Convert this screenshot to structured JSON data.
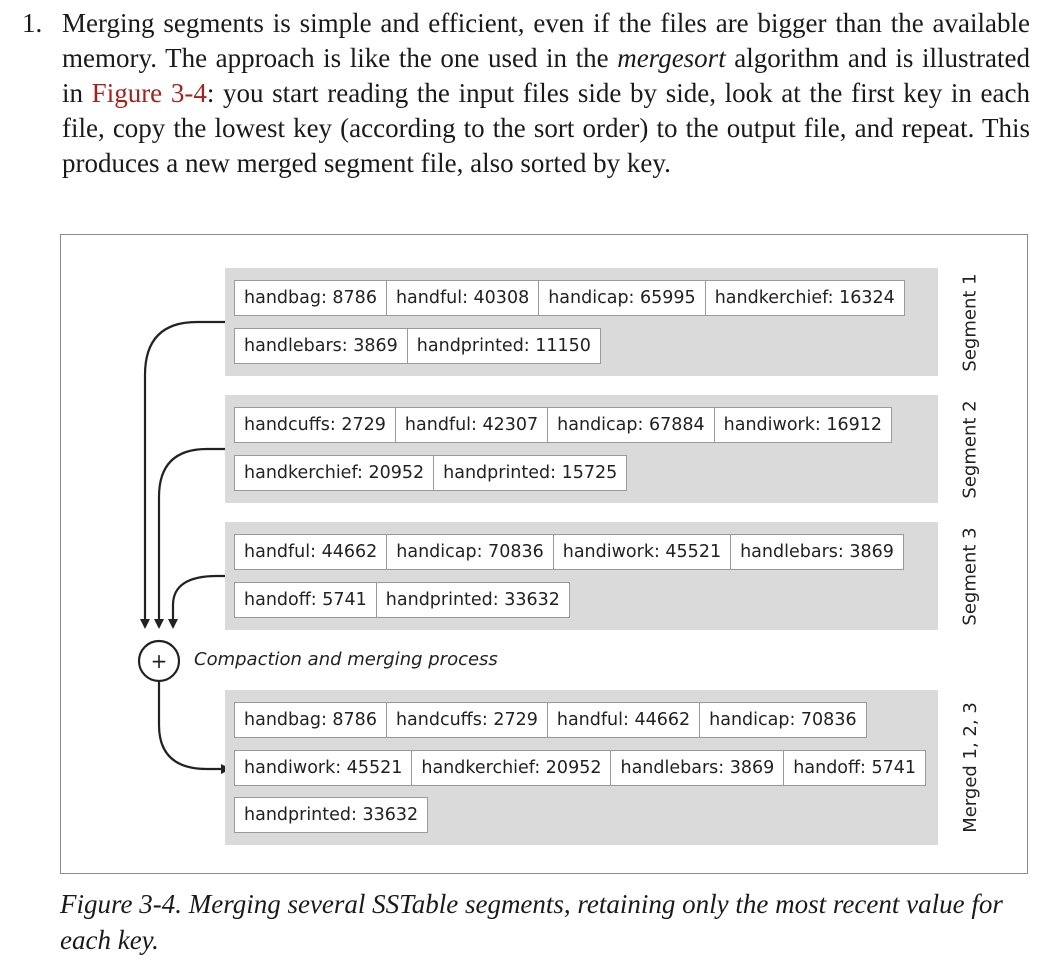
{
  "paragraph": {
    "number": "1.",
    "part1": "Merging segments is simple and efficient, even if the files are bigger than the available memory. The approach is like the one used in the ",
    "emphasis": "mergesort",
    "part2": " algorithm and is illustrated in ",
    "link": "Figure 3-4",
    "part3": ": you start reading the input files side by side, look at the first key in each file, copy the lowest key (according to the sort order) to the output file, and repeat. This produces a new merged segment file, also sorted by key."
  },
  "figure": {
    "segments": [
      {
        "label": "Segment 1",
        "rows": [
          [
            "handbag: 8786",
            "handful: 40308",
            "handicap: 65995",
            "handkerchief: 16324"
          ],
          [
            "handlebars: 3869",
            "handprinted: 11150"
          ]
        ]
      },
      {
        "label": "Segment 2",
        "rows": [
          [
            "handcuffs: 2729",
            "handful: 42307",
            "handicap: 67884",
            "handiwork: 16912"
          ],
          [
            "handkerchief: 20952",
            "handprinted: 15725"
          ]
        ]
      },
      {
        "label": "Segment 3",
        "rows": [
          [
            "handful: 44662",
            "handicap: 70836",
            "handiwork: 45521",
            "handlebars: 3869"
          ],
          [
            "handoff: 5741",
            "handprinted: 33632"
          ]
        ]
      }
    ],
    "merge_symbol": "+",
    "process_label": "Compaction and merging process",
    "merged": {
      "label": "Merged 1, 2, 3",
      "rows": [
        [
          "handbag: 8786",
          "handcuffs: 2729",
          "handful: 44662",
          "handicap: 70836"
        ],
        [
          "handiwork: 45521",
          "handkerchief: 20952",
          "handlebars: 3869",
          "handoff: 5741"
        ],
        [
          "handprinted: 33632"
        ]
      ]
    }
  },
  "caption": "Figure 3-4. Merging several SSTable segments, retaining only the most recent value for each key.",
  "colors": {
    "link": "#a8201a",
    "segment_bg": "#dadada",
    "cell_border": "#9a9a9a",
    "line": "#222222"
  }
}
